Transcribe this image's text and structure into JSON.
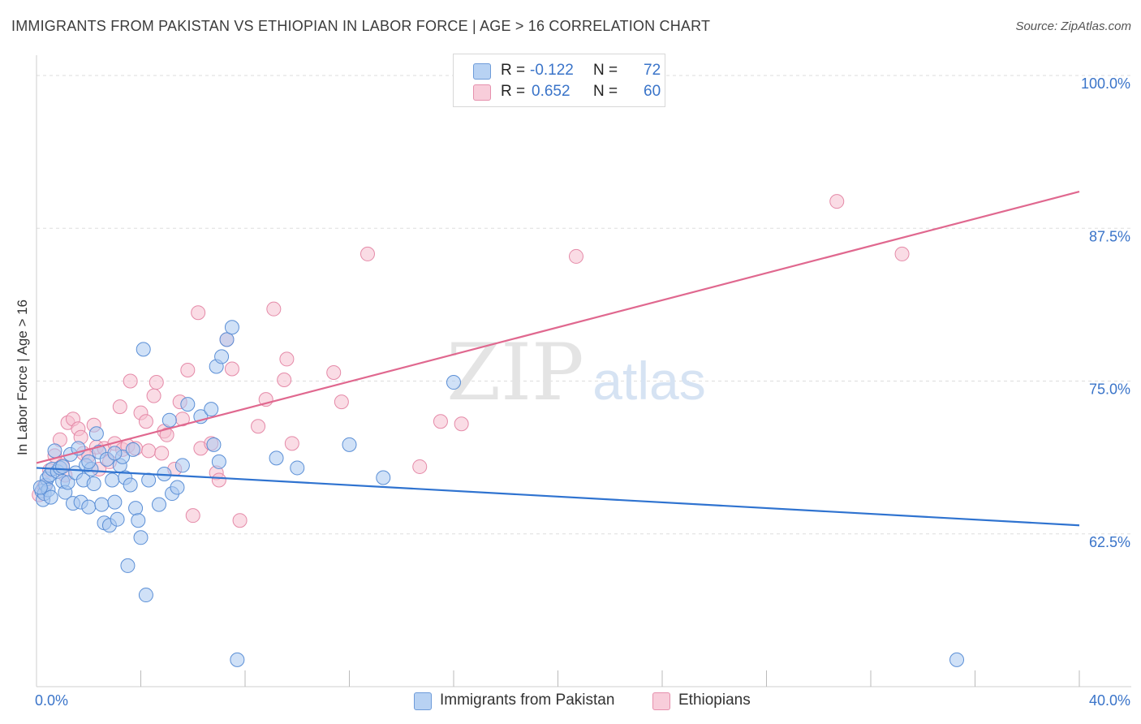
{
  "header": {
    "title": "IMMIGRANTS FROM PAKISTAN VS ETHIOPIAN IN LABOR FORCE | AGE > 16 CORRELATION CHART",
    "source": "Source: ZipAtlas.com"
  },
  "watermark": {
    "zip": "ZIP",
    "atlas": "atlas"
  },
  "legend": {
    "rows": [
      {
        "r_label": "R =",
        "r_value": "-0.122",
        "n_label": "N =",
        "n_value": "72"
      },
      {
        "r_label": "R =",
        "r_value": "0.652",
        "n_label": "N =",
        "n_value": "60"
      }
    ]
  },
  "bottom_legend": [
    "Immigrants from Pakistan",
    "Ethiopians"
  ],
  "colors": {
    "pakistan_fill": "#a9c8f0",
    "pakistan_stroke": "#5b8fd6",
    "pakistan_line": "#2f73d0",
    "ethiopian_fill": "#f6bfd0",
    "ethiopian_stroke": "#e58aa8",
    "ethiopian_line": "#e0688f",
    "tick_label": "#3a74c9",
    "grid": "#dddddd"
  },
  "chart_data": {
    "type": "scatter",
    "title": "IMMIGRANTS FROM PAKISTAN VS ETHIOPIAN IN LABOR FORCE | AGE > 16 CORRELATION CHART",
    "xlabel": "",
    "ylabel": "In Labor Force | Age > 16",
    "xlim": [
      0,
      40
    ],
    "ylim": [
      50,
      101
    ],
    "x_tick_labels": [
      "0.0%",
      "40.0%"
    ],
    "y_ticks": [
      {
        "value": 100,
        "label": "100.0%"
      },
      {
        "value": 87.5,
        "label": "87.5%"
      },
      {
        "value": 75,
        "label": "75.0%"
      },
      {
        "value": 62.5,
        "label": "62.5%"
      }
    ],
    "grid": true,
    "legend_position": "top-center",
    "series": [
      {
        "name": "Immigrants from Pakistan",
        "r": -0.122,
        "n": 72,
        "trend": {
          "x": [
            0,
            40
          ],
          "y": [
            67.9,
            63.2
          ]
        },
        "points": [
          [
            0.2,
            66.0
          ],
          [
            0.25,
            65.3
          ],
          [
            0.3,
            65.8
          ],
          [
            0.35,
            66.5
          ],
          [
            0.4,
            67.0
          ],
          [
            0.45,
            66.1
          ],
          [
            0.5,
            67.3
          ],
          [
            0.6,
            67.8
          ],
          [
            0.7,
            69.3
          ],
          [
            0.8,
            67.6
          ],
          [
            0.9,
            67.9
          ],
          [
            1.0,
            66.8
          ],
          [
            1.1,
            65.9
          ],
          [
            1.2,
            66.7
          ],
          [
            1.3,
            69.0
          ],
          [
            1.4,
            65.0
          ],
          [
            1.5,
            67.5
          ],
          [
            1.6,
            69.5
          ],
          [
            1.7,
            65.1
          ],
          [
            1.8,
            66.9
          ],
          [
            1.9,
            68.1
          ],
          [
            2.0,
            64.7
          ],
          [
            2.1,
            67.8
          ],
          [
            2.2,
            66.6
          ],
          [
            2.3,
            70.7
          ],
          [
            2.4,
            69.2
          ],
          [
            2.5,
            64.9
          ],
          [
            2.6,
            63.4
          ],
          [
            2.7,
            68.6
          ],
          [
            2.8,
            63.2
          ],
          [
            2.9,
            66.9
          ],
          [
            3.0,
            65.1
          ],
          [
            3.1,
            63.7
          ],
          [
            3.2,
            68.1
          ],
          [
            3.3,
            68.8
          ],
          [
            3.4,
            67.1
          ],
          [
            3.5,
            59.9
          ],
          [
            3.6,
            66.5
          ],
          [
            3.7,
            69.4
          ],
          [
            3.8,
            64.6
          ],
          [
            3.9,
            63.6
          ],
          [
            4.0,
            62.2
          ],
          [
            4.1,
            77.6
          ],
          [
            4.2,
            57.5
          ],
          [
            4.3,
            66.9
          ],
          [
            4.7,
            64.9
          ],
          [
            4.9,
            67.4
          ],
          [
            5.1,
            71.8
          ],
          [
            5.2,
            65.8
          ],
          [
            5.4,
            66.3
          ],
          [
            5.6,
            68.1
          ],
          [
            5.8,
            73.1
          ],
          [
            6.3,
            72.1
          ],
          [
            6.7,
            72.7
          ],
          [
            6.8,
            69.8
          ],
          [
            6.9,
            76.2
          ],
          [
            7.0,
            68.4
          ],
          [
            7.1,
            77.0
          ],
          [
            7.3,
            78.4
          ],
          [
            7.5,
            79.4
          ],
          [
            7.7,
            52.2
          ],
          [
            9.2,
            68.7
          ],
          [
            10.0,
            67.9
          ],
          [
            12.0,
            69.8
          ],
          [
            13.3,
            67.1
          ],
          [
            16.0,
            74.9
          ],
          [
            35.3,
            52.2
          ],
          [
            1.0,
            68.0
          ],
          [
            2.0,
            68.4
          ],
          [
            3.0,
            69.1
          ],
          [
            0.15,
            66.3
          ],
          [
            0.55,
            65.5
          ]
        ]
      },
      {
        "name": "Ethiopians",
        "r": 0.652,
        "n": 60,
        "trend": {
          "x": [
            0,
            40
          ],
          "y": [
            68.3,
            90.5
          ]
        },
        "points": [
          [
            0.1,
            65.7
          ],
          [
            0.3,
            66.4
          ],
          [
            0.5,
            67.7
          ],
          [
            0.7,
            68.9
          ],
          [
            0.9,
            70.2
          ],
          [
            1.0,
            68.1
          ],
          [
            1.1,
            67.3
          ],
          [
            1.2,
            71.6
          ],
          [
            1.4,
            71.9
          ],
          [
            1.6,
            71.1
          ],
          [
            1.7,
            70.4
          ],
          [
            1.8,
            69.1
          ],
          [
            2.0,
            68.9
          ],
          [
            2.2,
            71.4
          ],
          [
            2.3,
            69.6
          ],
          [
            2.4,
            67.8
          ],
          [
            2.6,
            69.5
          ],
          [
            2.8,
            68.4
          ],
          [
            3.0,
            69.9
          ],
          [
            3.2,
            72.9
          ],
          [
            3.3,
            69.4
          ],
          [
            3.5,
            69.7
          ],
          [
            3.6,
            75.0
          ],
          [
            3.8,
            69.5
          ],
          [
            4.0,
            72.4
          ],
          [
            4.2,
            71.7
          ],
          [
            4.3,
            69.3
          ],
          [
            4.5,
            73.8
          ],
          [
            4.6,
            74.9
          ],
          [
            4.8,
            69.1
          ],
          [
            4.9,
            70.9
          ],
          [
            5.0,
            70.6
          ],
          [
            5.3,
            67.8
          ],
          [
            5.5,
            73.3
          ],
          [
            5.6,
            71.9
          ],
          [
            5.8,
            75.9
          ],
          [
            6.0,
            64.0
          ],
          [
            6.2,
            80.6
          ],
          [
            6.3,
            69.5
          ],
          [
            6.7,
            69.9
          ],
          [
            6.9,
            67.5
          ],
          [
            7.0,
            66.9
          ],
          [
            7.3,
            78.4
          ],
          [
            7.5,
            76.0
          ],
          [
            7.8,
            63.6
          ],
          [
            8.5,
            71.3
          ],
          [
            8.8,
            73.5
          ],
          [
            9.1,
            80.9
          ],
          [
            9.5,
            75.1
          ],
          [
            9.6,
            76.8
          ],
          [
            9.8,
            69.9
          ],
          [
            11.4,
            75.7
          ],
          [
            11.7,
            73.3
          ],
          [
            12.7,
            85.4
          ],
          [
            14.7,
            68.0
          ],
          [
            15.5,
            71.7
          ],
          [
            16.3,
            71.5
          ],
          [
            20.7,
            85.2
          ],
          [
            30.7,
            89.7
          ],
          [
            33.2,
            85.4
          ]
        ]
      }
    ]
  }
}
